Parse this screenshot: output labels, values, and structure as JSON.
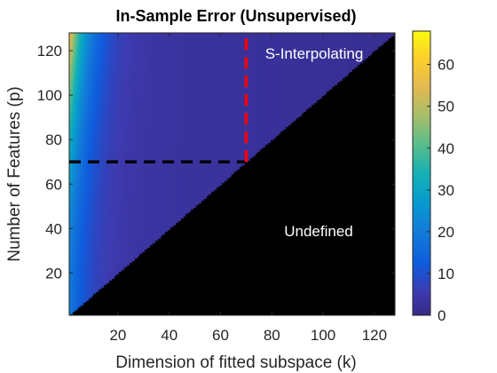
{
  "chart_data": {
    "type": "heatmap",
    "title": "In-Sample Error (Unsupervised)",
    "xlabel": "Dimension of fitted subspace (k)",
    "ylabel": "Number of Features (p)",
    "xlim": [
      1,
      128
    ],
    "ylim": [
      1,
      128
    ],
    "xticks": [
      "20",
      "40",
      "60",
      "80",
      "100",
      "120"
    ],
    "yticks": [
      "20",
      "40",
      "60",
      "80",
      "100",
      "120"
    ],
    "xtick_values": [
      20,
      40,
      60,
      80,
      100,
      120
    ],
    "ytick_values": [
      20,
      40,
      60,
      80,
      100,
      120
    ],
    "colorbar": {
      "range": [
        0,
        68
      ],
      "ticks": [
        "0",
        "10",
        "20",
        "30",
        "40",
        "50",
        "60"
      ],
      "tick_values": [
        0,
        10,
        20,
        30,
        40,
        50,
        60
      ],
      "colormap": "parula"
    },
    "region_undefined": {
      "rule": "k > p",
      "label": "Undefined",
      "color": "#000000"
    },
    "region_label": "S-Interpolating",
    "annotations": [
      {
        "type": "dashed-horizontal",
        "y": 70,
        "x_range": [
          1,
          70
        ],
        "color": "#000000"
      },
      {
        "type": "dashed-vertical",
        "x": 70,
        "y_range": [
          70,
          128
        ],
        "color": "#ff0000"
      }
    ],
    "sample_values": [
      {
        "k": 1,
        "p": 128,
        "value": 56
      },
      {
        "k": 5,
        "p": 128,
        "value": 48
      },
      {
        "k": 10,
        "p": 120,
        "value": 30
      },
      {
        "k": 1,
        "p": 70,
        "value": 22
      },
      {
        "k": 1,
        "p": 10,
        "value": 18
      },
      {
        "k": 40,
        "p": 80,
        "value": 6
      },
      {
        "k": 100,
        "p": 120,
        "value": 2
      }
    ]
  }
}
